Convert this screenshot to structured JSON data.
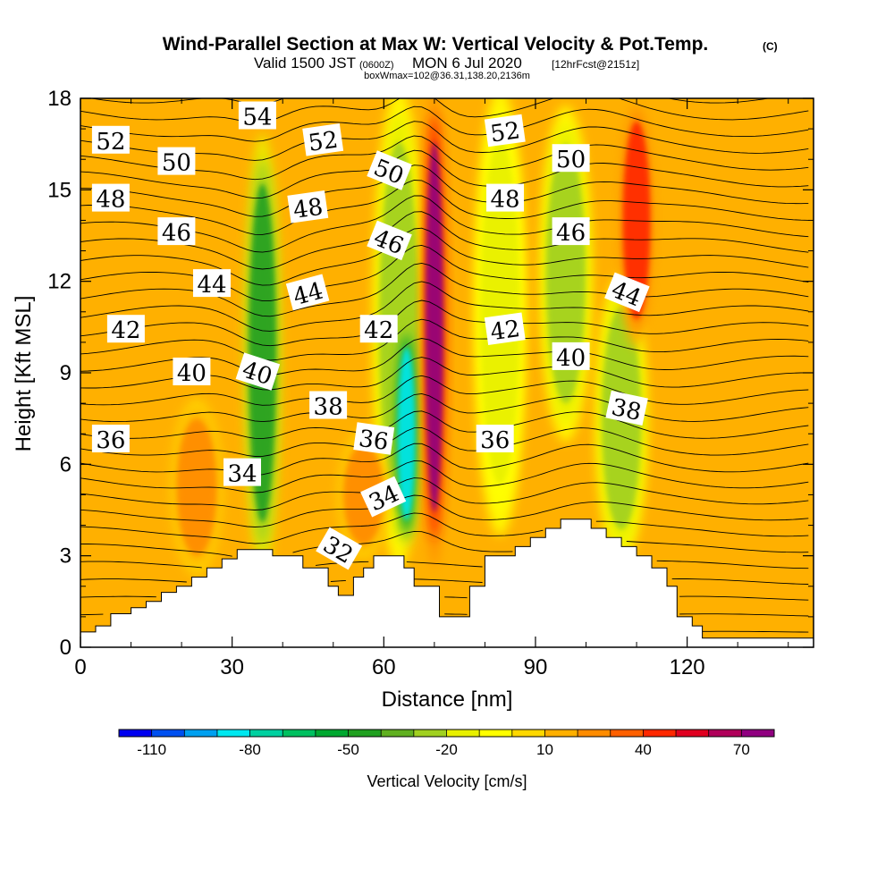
{
  "title": {
    "main": "Wind-Parallel Section at Max W: Vertical Velocity & Pot.Temp.",
    "copyright": "(C)",
    "valid_prefix": "Valid 1500 JST",
    "valid_zulu": "(0600Z)",
    "valid_date": "MON 6 Jul 2020",
    "forecast": "[12hrFcst@2151z]",
    "box_info": "boxWmax=102@36.31,138.20,2136m"
  },
  "chart_data": {
    "type": "heatmap",
    "xlabel": "Distance [nm]",
    "ylabel": "Height [Kft MSL]",
    "xlim": [
      0,
      145
    ],
    "ylim": [
      0,
      18
    ],
    "x_ticks": [
      "0",
      "30",
      "60",
      "90",
      "120"
    ],
    "y_ticks": [
      "0",
      "3",
      "6",
      "9",
      "12",
      "15",
      "18"
    ],
    "colorbar": {
      "label": "Vertical Velocity [cm/s]",
      "tick_labels": [
        "-110",
        "-80",
        "-50",
        "-20",
        "10",
        "40",
        "70"
      ],
      "levels": [
        -120,
        -110,
        -100,
        -90,
        -80,
        -70,
        -60,
        -50,
        -40,
        -30,
        -20,
        -10,
        0,
        10,
        20,
        30,
        40,
        50,
        60,
        70,
        80
      ],
      "colors": [
        "#0000f0",
        "#0050f0",
        "#00a0f0",
        "#00e8f0",
        "#00d0a0",
        "#00c060",
        "#00a830",
        "#20a020",
        "#60b020",
        "#a0d020",
        "#e8f000",
        "#ffff00",
        "#ffd800",
        "#ffb000",
        "#ff8c00",
        "#ff6000",
        "#ff2800",
        "#e00020",
        "#b0005a",
        "#900080"
      ]
    },
    "theta_contour_labels": [
      "32",
      "34",
      "36",
      "38",
      "40",
      "42",
      "44",
      "46",
      "48",
      "50",
      "52",
      "54"
    ],
    "terrain_profile_kft": [
      [
        0,
        0.5
      ],
      [
        3,
        0.5
      ],
      [
        3,
        0.7
      ],
      [
        6,
        0.7
      ],
      [
        6,
        1.1
      ],
      [
        10,
        1.1
      ],
      [
        10,
        1.3
      ],
      [
        13,
        1.3
      ],
      [
        13,
        1.5
      ],
      [
        16,
        1.5
      ],
      [
        16,
        1.8
      ],
      [
        19,
        1.8
      ],
      [
        19,
        2.0
      ],
      [
        22,
        2.0
      ],
      [
        22,
        2.3
      ],
      [
        25,
        2.3
      ],
      [
        25,
        2.6
      ],
      [
        28,
        2.6
      ],
      [
        28,
        2.9
      ],
      [
        31,
        2.9
      ],
      [
        31,
        3.2
      ],
      [
        38,
        3.2
      ],
      [
        38,
        3.0
      ],
      [
        44,
        3.0
      ],
      [
        44,
        2.6
      ],
      [
        49,
        2.6
      ],
      [
        49,
        2.0
      ],
      [
        51,
        2.0
      ],
      [
        51,
        1.7
      ],
      [
        54,
        1.7
      ],
      [
        54,
        2.3
      ],
      [
        56,
        2.3
      ],
      [
        56,
        2.6
      ],
      [
        58,
        2.6
      ],
      [
        58,
        3.0
      ],
      [
        64,
        3.0
      ],
      [
        64,
        2.6
      ],
      [
        66,
        2.6
      ],
      [
        66,
        2.0
      ],
      [
        71,
        2.0
      ],
      [
        71,
        1.0
      ],
      [
        77,
        1.0
      ],
      [
        77,
        2.0
      ],
      [
        80,
        2.0
      ],
      [
        80,
        3.0
      ],
      [
        86,
        3.0
      ],
      [
        86,
        3.3
      ],
      [
        89,
        3.3
      ],
      [
        89,
        3.6
      ],
      [
        92,
        3.6
      ],
      [
        92,
        3.9
      ],
      [
        95,
        3.9
      ],
      [
        95,
        4.2
      ],
      [
        101,
        4.2
      ],
      [
        101,
        3.9
      ],
      [
        104,
        3.9
      ],
      [
        104,
        3.6
      ],
      [
        107,
        3.6
      ],
      [
        107,
        3.3
      ],
      [
        110,
        3.3
      ],
      [
        110,
        3.0
      ],
      [
        113,
        3.0
      ],
      [
        113,
        2.6
      ],
      [
        116,
        2.6
      ],
      [
        116,
        2.0
      ],
      [
        118,
        2.0
      ],
      [
        118,
        1.0
      ],
      [
        121,
        1.0
      ],
      [
        121,
        0.7
      ],
      [
        123,
        0.7
      ],
      [
        123,
        0.3
      ],
      [
        145,
        0.3
      ]
    ],
    "w_field_bands": [
      {
        "x": 36,
        "w": -45,
        "z": [
          2.8,
          16.5
        ],
        "note": "downdraft"
      },
      {
        "x": 63,
        "w": -30,
        "z": [
          3,
          18
        ]
      },
      {
        "x": 64.5,
        "w": -85,
        "z": [
          3.5,
          10.5
        ]
      },
      {
        "x": 70,
        "w": 70,
        "z": [
          3,
          18
        ],
        "note": "max updraft"
      },
      {
        "x": 83,
        "w": -15,
        "z": [
          4,
          18
        ]
      },
      {
        "x": 96,
        "w": -25,
        "z": [
          7,
          17.5
        ]
      },
      {
        "x": 107,
        "w": -30,
        "z": [
          3,
          12
        ]
      },
      {
        "x": 110,
        "w": 40,
        "z": [
          10,
          18
        ]
      },
      {
        "x": 23,
        "w": 25,
        "z": [
          2.5,
          8
        ]
      },
      {
        "x": 56,
        "w": 20,
        "z": [
          3,
          7
        ]
      }
    ]
  }
}
